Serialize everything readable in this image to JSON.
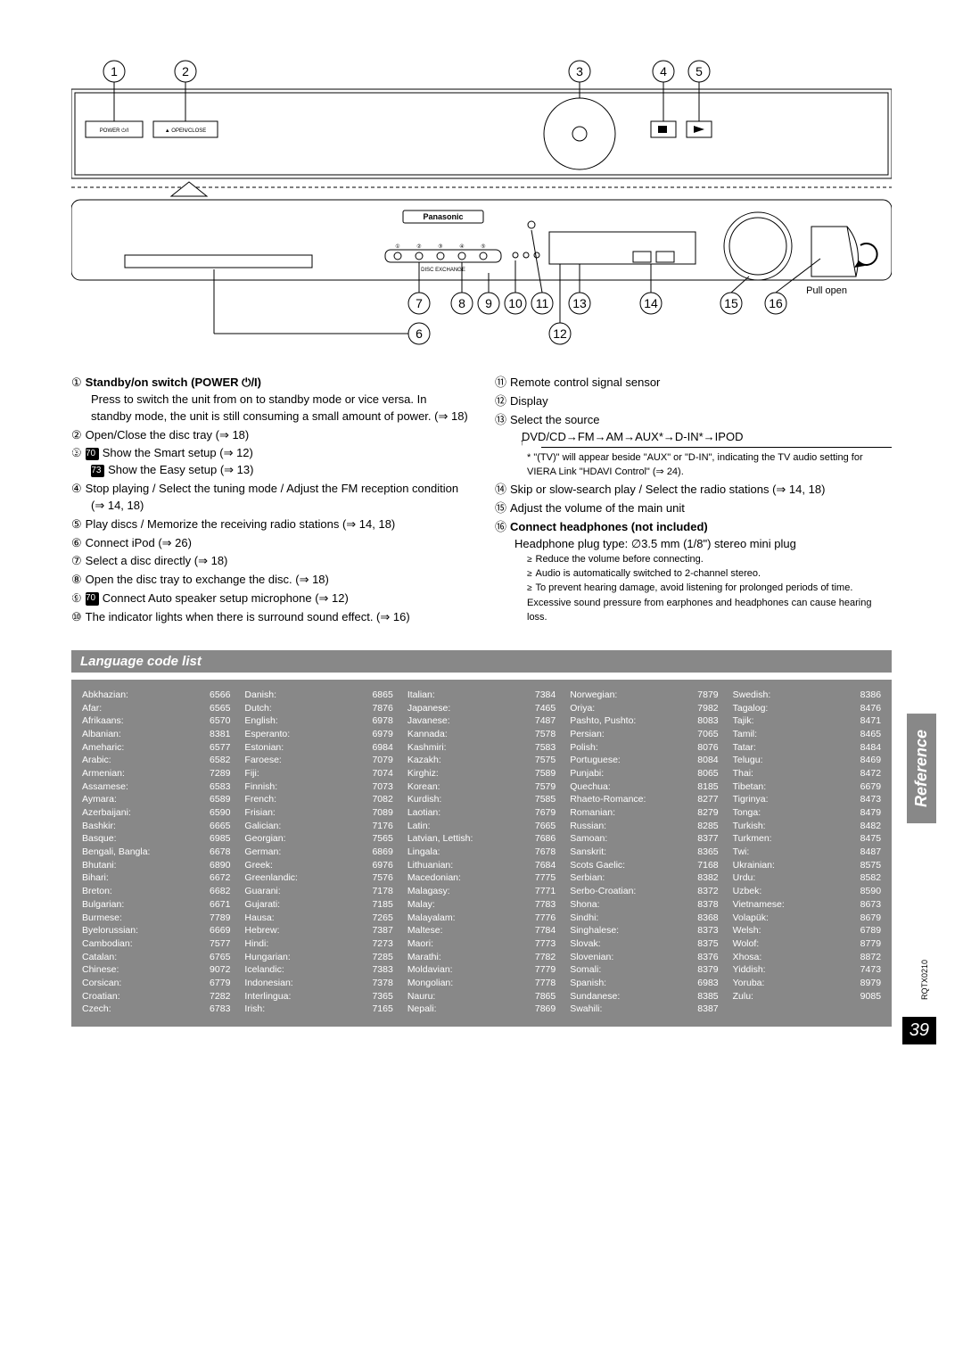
{
  "diagram": {
    "top_indicators": [
      "1",
      "2",
      "3",
      "4",
      "5"
    ],
    "bottom_indicators": [
      "7",
      "8",
      "9",
      "10",
      "11",
      "13",
      "14",
      "15",
      "16"
    ],
    "lower_indicators": [
      "6",
      "12"
    ],
    "pull_open_label": "Pull open",
    "brand": "Panasonic",
    "btn_labels": {
      "power": "POWER ⏻/I",
      "open": "▲ OPEN/CLOSE"
    }
  },
  "left_items": [
    {
      "n": "①",
      "bold": "Standby/on switch (POWER ⏻/I)",
      "text": "Press to switch the unit from on to standby mode or vice versa. In standby mode, the unit is still consuming a small amount of power. (⇒ 18)"
    },
    {
      "n": "②",
      "text": "Open/Close the disc tray (⇒ 18)"
    },
    {
      "n": "③",
      "model_lines": [
        {
          "tag": "PT670",
          "text": "Show the Smart setup (⇒ 12)"
        },
        {
          "tag": "PT673",
          "text": "Show the Easy setup (⇒ 13)"
        }
      ]
    },
    {
      "n": "④",
      "text": "Stop playing / Select the tuning mode / Adjust the FM reception condition (⇒ 14, 18)"
    },
    {
      "n": "⑤",
      "text": "Play discs / Memorize the receiving radio stations (⇒ 14, 18)"
    },
    {
      "n": "⑥",
      "text": "Connect iPod (⇒ 26)"
    },
    {
      "n": "⑦",
      "text": "Select a disc directly (⇒ 18)"
    },
    {
      "n": "⑧",
      "text": "Open the disc tray to exchange the disc. (⇒ 18)"
    },
    {
      "n": "⑨",
      "model_lines": [
        {
          "tag": "PT670",
          "text": "Connect Auto speaker setup microphone (⇒ 12)"
        }
      ]
    },
    {
      "n": "⑩",
      "text": "The indicator lights when there is surround sound effect. (⇒ 16)"
    }
  ],
  "right_items": [
    {
      "n": "⑪",
      "text": "Remote control signal sensor"
    },
    {
      "n": "⑫",
      "text": "Display"
    },
    {
      "n": "⑬",
      "text": "Select the source",
      "source_line": "DVD/CD→FM→AM→AUX*→D-IN*→IPOD",
      "source_note": "* \"(TV)\" will appear beside \"AUX\" or \"D-IN\", indicating the TV audio setting for VIERA Link \"HDAVI Control\" (⇒ 24)."
    },
    {
      "n": "⑭",
      "text": "Skip or slow-search play / Select the radio stations (⇒ 14, 18)"
    },
    {
      "n": "⑮",
      "text": "Adjust the volume of the main unit"
    },
    {
      "n": "⑯",
      "bold": "Connect headphones (not included)",
      "text": "Headphone plug type: ∅3.5 mm (1/8\") stereo mini plug",
      "bullets": [
        "Reduce the volume before connecting.",
        "Audio is automatically switched to 2-channel stereo.",
        "To prevent hearing damage, avoid listening for prolonged periods of time."
      ],
      "tail_note": "Excessive sound pressure from earphones and headphones can cause hearing loss."
    }
  ],
  "lang_header": "Language code list",
  "languages": [
    [
      [
        "Abkhazian:",
        "6566"
      ],
      [
        "Afar:",
        "6565"
      ],
      [
        "Afrikaans:",
        "6570"
      ],
      [
        "Albanian:",
        "8381"
      ],
      [
        "Ameharic:",
        "6577"
      ],
      [
        "Arabic:",
        "6582"
      ],
      [
        "Armenian:",
        "7289"
      ],
      [
        "Assamese:",
        "6583"
      ],
      [
        "Aymara:",
        "6589"
      ],
      [
        "Azerbaijani:",
        "6590"
      ],
      [
        "Bashkir:",
        "6665"
      ],
      [
        "Basque:",
        "6985"
      ],
      [
        "Bengali, Bangla:",
        "6678"
      ],
      [
        "Bhutani:",
        "6890"
      ],
      [
        "Bihari:",
        "6672"
      ],
      [
        "Breton:",
        "6682"
      ],
      [
        "Bulgarian:",
        "6671"
      ],
      [
        "Burmese:",
        "7789"
      ],
      [
        "Byelorussian:",
        "6669"
      ],
      [
        "Cambodian:",
        "7577"
      ],
      [
        "Catalan:",
        "6765"
      ],
      [
        "Chinese:",
        "9072"
      ],
      [
        "Corsican:",
        "6779"
      ],
      [
        "Croatian:",
        "7282"
      ],
      [
        "Czech:",
        "6783"
      ]
    ],
    [
      [
        "Danish:",
        "6865"
      ],
      [
        "Dutch:",
        "7876"
      ],
      [
        "English:",
        "6978"
      ],
      [
        "Esperanto:",
        "6979"
      ],
      [
        "Estonian:",
        "6984"
      ],
      [
        "Faroese:",
        "7079"
      ],
      [
        "Fiji:",
        "7074"
      ],
      [
        "Finnish:",
        "7073"
      ],
      [
        "French:",
        "7082"
      ],
      [
        "Frisian:",
        "7089"
      ],
      [
        "Galician:",
        "7176"
      ],
      [
        "Georgian:",
        "7565"
      ],
      [
        "German:",
        "6869"
      ],
      [
        "Greek:",
        "6976"
      ],
      [
        "Greenlandic:",
        "7576"
      ],
      [
        "Guarani:",
        "7178"
      ],
      [
        "Gujarati:",
        "7185"
      ],
      [
        "Hausa:",
        "7265"
      ],
      [
        "Hebrew:",
        "7387"
      ],
      [
        "Hindi:",
        "7273"
      ],
      [
        "Hungarian:",
        "7285"
      ],
      [
        "Icelandic:",
        "7383"
      ],
      [
        "Indonesian:",
        "7378"
      ],
      [
        "Interlingua:",
        "7365"
      ],
      [
        "Irish:",
        "7165"
      ]
    ],
    [
      [
        "Italian:",
        "7384"
      ],
      [
        "Japanese:",
        "7465"
      ],
      [
        "Javanese:",
        "7487"
      ],
      [
        "Kannada:",
        "7578"
      ],
      [
        "Kashmiri:",
        "7583"
      ],
      [
        "Kazakh:",
        "7575"
      ],
      [
        "Kirghiz:",
        "7589"
      ],
      [
        "Korean:",
        "7579"
      ],
      [
        "Kurdish:",
        "7585"
      ],
      [
        "Laotian:",
        "7679"
      ],
      [
        "Latin:",
        "7665"
      ],
      [
        "Latvian, Lettish:",
        "7686"
      ],
      [
        "Lingala:",
        "7678"
      ],
      [
        "Lithuanian:",
        "7684"
      ],
      [
        "Macedonian:",
        "7775"
      ],
      [
        "Malagasy:",
        "7771"
      ],
      [
        "Malay:",
        "7783"
      ],
      [
        "Malayalam:",
        "7776"
      ],
      [
        "Maltese:",
        "7784"
      ],
      [
        "Maori:",
        "7773"
      ],
      [
        "Marathi:",
        "7782"
      ],
      [
        "Moldavian:",
        "7779"
      ],
      [
        "Mongolian:",
        "7778"
      ],
      [
        "Nauru:",
        "7865"
      ],
      [
        "Nepali:",
        "7869"
      ]
    ],
    [
      [
        "Norwegian:",
        "7879"
      ],
      [
        "Oriya:",
        "7982"
      ],
      [
        "Pashto, Pushto:",
        "8083"
      ],
      [
        "Persian:",
        "7065"
      ],
      [
        "Polish:",
        "8076"
      ],
      [
        "Portuguese:",
        "8084"
      ],
      [
        "Punjabi:",
        "8065"
      ],
      [
        "Quechua:",
        "8185"
      ],
      [
        "Rhaeto-Romance:",
        "8277"
      ],
      [
        "Romanian:",
        "8279"
      ],
      [
        "Russian:",
        "8285"
      ],
      [
        "Samoan:",
        "8377"
      ],
      [
        "Sanskrit:",
        "8365"
      ],
      [
        "Scots Gaelic:",
        "7168"
      ],
      [
        "Serbian:",
        "8382"
      ],
      [
        "Serbo-Croatian:",
        "8372"
      ],
      [
        "Shona:",
        "8378"
      ],
      [
        "Sindhi:",
        "8368"
      ],
      [
        "Singhalese:",
        "8373"
      ],
      [
        "Slovak:",
        "8375"
      ],
      [
        "Slovenian:",
        "8376"
      ],
      [
        "Somali:",
        "8379"
      ],
      [
        "Spanish:",
        "6983"
      ],
      [
        "Sundanese:",
        "8385"
      ],
      [
        "Swahili:",
        "8387"
      ]
    ],
    [
      [
        "Swedish:",
        "8386"
      ],
      [
        "Tagalog:",
        "8476"
      ],
      [
        "Tajik:",
        "8471"
      ],
      [
        "Tamil:",
        "8465"
      ],
      [
        "Tatar:",
        "8484"
      ],
      [
        "Telugu:",
        "8469"
      ],
      [
        "Thai:",
        "8472"
      ],
      [
        "Tibetan:",
        "6679"
      ],
      [
        "Tigrinya:",
        "8473"
      ],
      [
        "Tonga:",
        "8479"
      ],
      [
        "Turkish:",
        "8482"
      ],
      [
        "Turkmen:",
        "8475"
      ],
      [
        "Twi:",
        "8487"
      ],
      [
        "Ukrainian:",
        "8575"
      ],
      [
        "Urdu:",
        "8582"
      ],
      [
        "Uzbek:",
        "8590"
      ],
      [
        "Vietnamese:",
        "8673"
      ],
      [
        "Volapük:",
        "8679"
      ],
      [
        "Welsh:",
        "6789"
      ],
      [
        "Wolof:",
        "8779"
      ],
      [
        "Xhosa:",
        "8872"
      ],
      [
        "Yiddish:",
        "7473"
      ],
      [
        "Yoruba:",
        "8979"
      ],
      [
        "Zulu:",
        "9085"
      ]
    ]
  ],
  "side_tab": "Reference",
  "page_number": "39",
  "doc_code": "RQTX0210"
}
